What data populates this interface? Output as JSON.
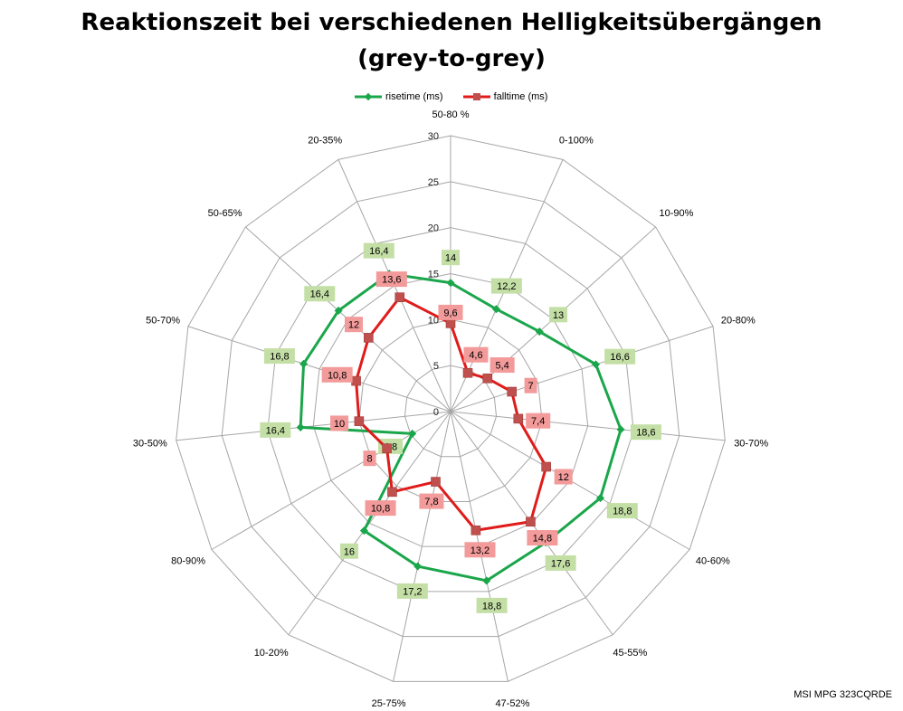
{
  "title": "Reaktionszeit bei verschiedenen Helligkeitsübergängen",
  "subtitle": "(grey-to-grey)",
  "footer": "MSI MPG 323CQRDE",
  "colors": {
    "rise": "#1aa64a",
    "fall": "#e01b1b",
    "rise_label_bg": "#c4dfa6",
    "fall_label_bg": "#f39a9a",
    "grid": "#a6a6a6"
  },
  "chart_data": {
    "type": "radar",
    "categories": [
      "50-80 %",
      "0-100%",
      "10-90%",
      "20-80%",
      "30-70%",
      "40-60%",
      "45-55%",
      "47-52%",
      "25-75%",
      "10-20%",
      "80-90%",
      "30-50%",
      "50-70%",
      "50-65%",
      "20-35%"
    ],
    "r_ticks": [
      0,
      5,
      10,
      15,
      20,
      25,
      30
    ],
    "rlim": [
      0,
      30
    ],
    "legend_position": "top",
    "series": [
      {
        "name": "risetime (ms)",
        "values": [
          14,
          12.2,
          13,
          16.6,
          18.6,
          18.8,
          17.6,
          18.8,
          17.2,
          16,
          4.8,
          16.4,
          16.8,
          16.4,
          16.4
        ],
        "labels": [
          "14",
          "12,2",
          "13",
          "16,6",
          "18,6",
          "18,8",
          "17,6",
          "18,8",
          "17,2",
          "16",
          "4,8",
          "16,4",
          "16,8",
          "16,4",
          "16,4"
        ]
      },
      {
        "name": "falltime (ms)",
        "values": [
          9.6,
          4.6,
          5.4,
          7,
          7.4,
          12,
          14.8,
          13.2,
          7.8,
          10.8,
          8,
          10,
          10.8,
          12,
          13.6
        ],
        "labels": [
          "9,6",
          "4,6",
          "5,4",
          "7",
          "7,4",
          "12",
          "14,8",
          "13,2",
          "7,8",
          "10,8",
          "8",
          "10",
          "10,8",
          "12",
          "13,6"
        ]
      }
    ]
  }
}
